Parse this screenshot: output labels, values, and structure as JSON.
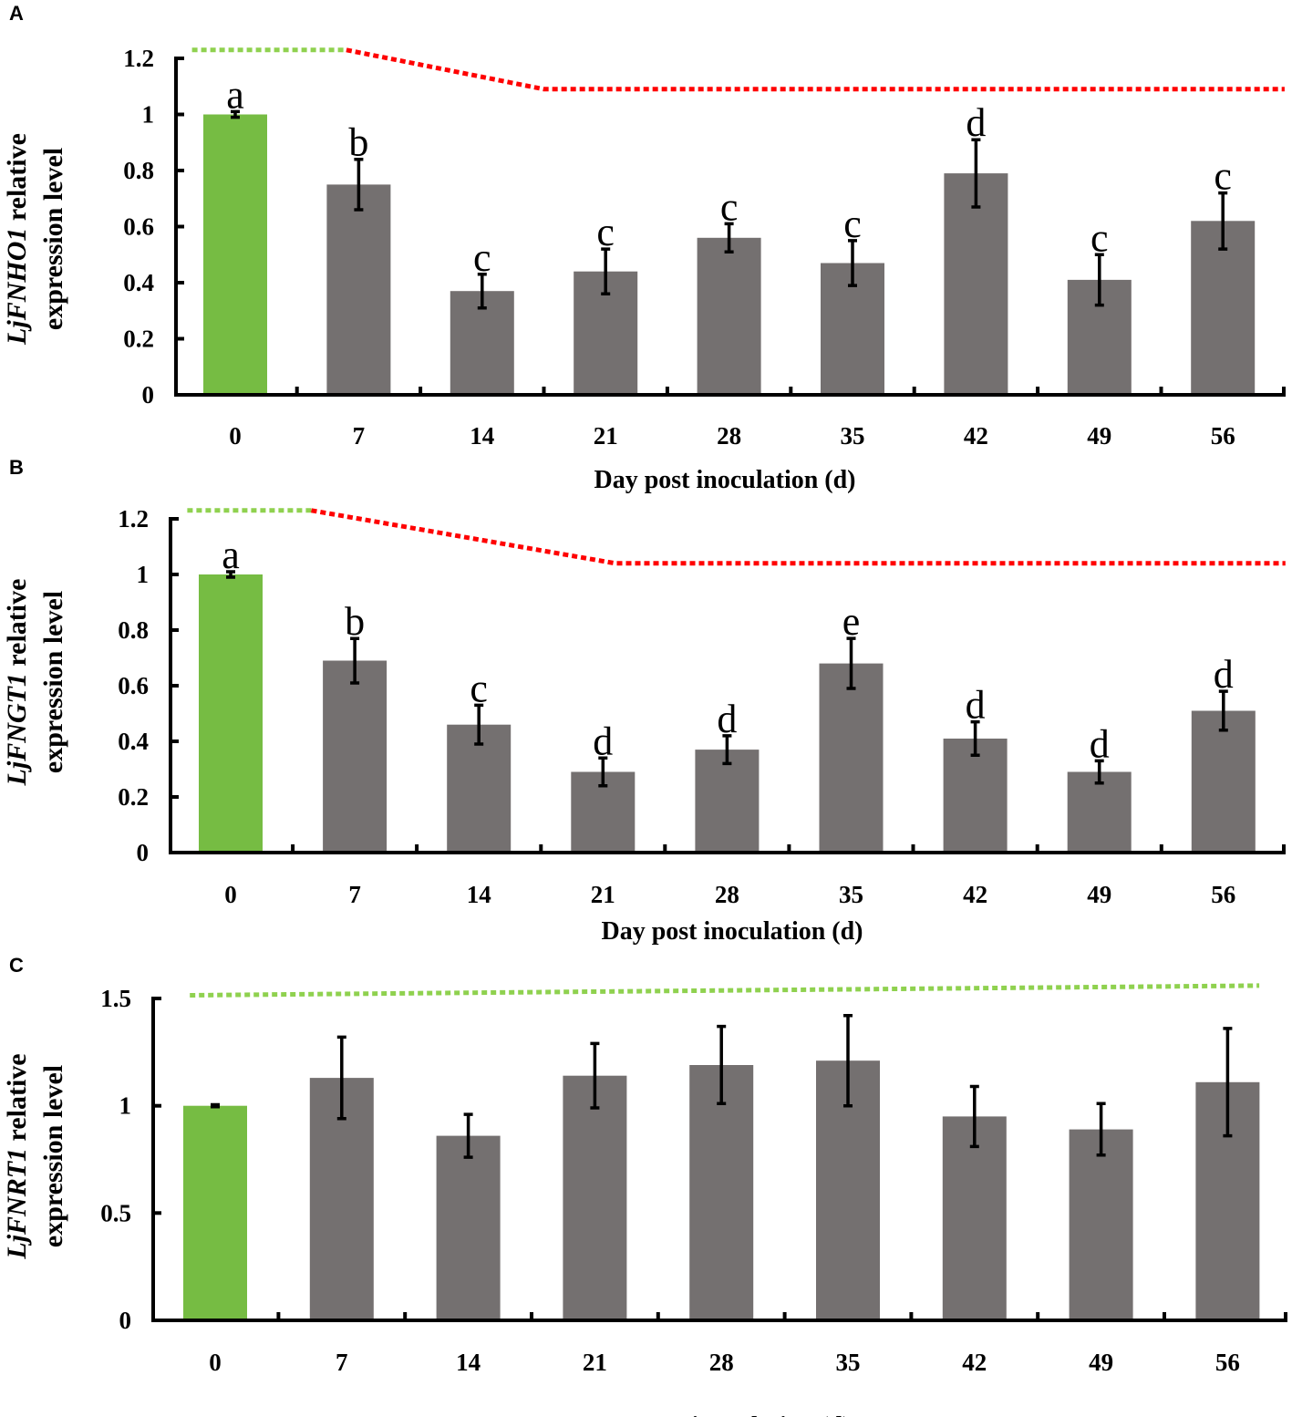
{
  "figure": {
    "colors": {
      "green": "#76bc43",
      "gray": "#747070",
      "axis": "#000000",
      "green_line": "#8fd14f",
      "red_line": "#ff0000"
    }
  },
  "chart_data": [
    {
      "panel": "A",
      "type": "bar",
      "title": "",
      "ylabel_gene": "LjFNHO1",
      "ylabel_rest1": " relative",
      "ylabel_line2": "expression level",
      "xlabel": "Day post inoculation (d)",
      "categories": [
        "0",
        "7",
        "14",
        "21",
        "28",
        "35",
        "42",
        "49",
        "56"
      ],
      "values": [
        1.0,
        0.75,
        0.37,
        0.44,
        0.56,
        0.47,
        0.79,
        0.41,
        0.62
      ],
      "errors": [
        0.01,
        0.09,
        0.06,
        0.08,
        0.05,
        0.08,
        0.12,
        0.09,
        0.1
      ],
      "letters": [
        "a",
        "b",
        "c",
        "c",
        "c",
        "c",
        "d",
        "c",
        "c"
      ],
      "bar_colors": [
        "green",
        "gray",
        "gray",
        "gray",
        "gray",
        "gray",
        "gray",
        "gray",
        "gray"
      ],
      "ylim": [
        0,
        1.2
      ],
      "yticks": [
        0,
        0.2,
        0.4,
        0.6,
        0.8,
        1,
        1.2
      ],
      "ytick_labels": [
        "0",
        "0.2",
        "0.4",
        "0.6",
        "0.8",
        "1",
        "1.2"
      ],
      "trend": [
        {
          "color": "green",
          "points": [
            [
              -0.35,
              1.23
            ],
            [
              0.9,
              1.23
            ]
          ]
        },
        {
          "color": "red",
          "points": [
            [
              0.9,
              1.23
            ],
            [
              2.5,
              1.09
            ],
            [
              8.5,
              1.09
            ]
          ]
        }
      ]
    },
    {
      "panel": "B",
      "type": "bar",
      "title": "",
      "ylabel_gene": "LjFNGT1",
      "ylabel_rest1": " relative",
      "ylabel_line2": "expression level",
      "xlabel": "Day post inoculation (d)",
      "categories": [
        "0",
        "7",
        "14",
        "21",
        "28",
        "35",
        "42",
        "49",
        "56"
      ],
      "values": [
        1.0,
        0.69,
        0.46,
        0.29,
        0.37,
        0.68,
        0.41,
        0.29,
        0.51
      ],
      "errors": [
        0.01,
        0.08,
        0.07,
        0.05,
        0.05,
        0.09,
        0.06,
        0.04,
        0.07
      ],
      "letters": [
        "a",
        "b",
        "c",
        "d",
        "d",
        "e",
        "d",
        "d",
        "d"
      ],
      "bar_colors": [
        "green",
        "gray",
        "gray",
        "gray",
        "gray",
        "gray",
        "gray",
        "gray",
        "gray"
      ],
      "ylim": [
        0,
        1.2
      ],
      "yticks": [
        0,
        0.2,
        0.4,
        0.6,
        0.8,
        1,
        1.2
      ],
      "ytick_labels": [
        "0",
        "0.2",
        "0.4",
        "0.6",
        "0.8",
        "1",
        "1.2"
      ],
      "trend": [
        {
          "color": "green",
          "points": [
            [
              -0.35,
              1.23
            ],
            [
              0.65,
              1.23
            ]
          ]
        },
        {
          "color": "red",
          "points": [
            [
              0.65,
              1.23
            ],
            [
              3.1,
              1.04
            ],
            [
              8.5,
              1.04
            ]
          ]
        }
      ]
    },
    {
      "panel": "C",
      "type": "bar",
      "title": "",
      "ylabel_gene": "LjFNRT1",
      "ylabel_rest1": " relative",
      "ylabel_line2": "expression level",
      "xlabel": "Day post inoculation (d)",
      "categories": [
        "0",
        "7",
        "14",
        "21",
        "28",
        "35",
        "42",
        "49",
        "56"
      ],
      "values": [
        1.0,
        1.13,
        0.86,
        1.14,
        1.19,
        1.21,
        0.95,
        0.89,
        1.11
      ],
      "errors": [
        0.005,
        0.19,
        0.1,
        0.15,
        0.18,
        0.21,
        0.14,
        0.12,
        0.25
      ],
      "letters": [
        "",
        "",
        "",
        "",
        "",
        "",
        "",
        "",
        ""
      ],
      "bar_colors": [
        "green",
        "gray",
        "gray",
        "gray",
        "gray",
        "gray",
        "gray",
        "gray",
        "gray"
      ],
      "ylim": [
        0,
        1.5
      ],
      "yticks": [
        0,
        0.5,
        1,
        1.5
      ],
      "ytick_labels": [
        "0",
        "0.5",
        "1",
        "1.5"
      ],
      "trend": [
        {
          "color": "green",
          "points": [
            [
              -0.2,
              1.515
            ],
            [
              8.25,
              1.56
            ]
          ]
        }
      ]
    }
  ]
}
